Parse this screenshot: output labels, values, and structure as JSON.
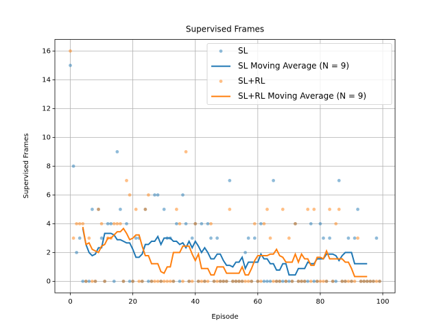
{
  "chart_data": {
    "type": "line",
    "title": "Supervised Frames",
    "x_label": "Episode",
    "y_label": "Supervised Frames",
    "x": [
      0,
      1,
      2,
      3,
      4,
      5,
      6,
      7,
      8,
      9,
      10,
      11,
      12,
      13,
      14,
      15,
      16,
      17,
      18,
      19,
      20,
      21,
      22,
      23,
      24,
      25,
      26,
      27,
      28,
      29,
      30,
      31,
      32,
      33,
      34,
      35,
      36,
      37,
      38,
      39,
      40,
      41,
      42,
      43,
      44,
      45,
      46,
      47,
      48,
      49,
      50,
      51,
      52,
      53,
      54,
      55,
      56,
      57,
      58,
      59,
      60,
      61,
      62,
      63,
      64,
      65,
      66,
      67,
      68,
      69,
      70,
      71,
      72,
      73,
      74,
      75,
      76,
      77,
      78,
      79,
      80,
      81,
      82,
      83,
      84,
      85,
      86,
      87,
      88,
      89,
      90,
      91,
      92,
      93,
      94,
      95,
      96,
      97,
      98,
      99
    ],
    "series": [
      {
        "name": "SL",
        "color": "#1f77b4",
        "mode": "markers",
        "values": [
          15,
          8,
          2,
          3,
          0,
          0,
          0,
          5,
          0,
          5,
          3,
          0,
          4,
          4,
          0,
          9,
          5,
          0,
          4,
          0,
          0,
          3,
          3,
          0,
          5,
          0,
          0,
          6,
          6,
          0,
          5,
          3,
          3,
          0,
          4,
          0,
          6,
          4,
          0,
          3,
          4,
          0,
          4,
          0,
          4,
          3,
          0,
          3,
          0,
          0,
          0,
          7,
          0,
          0,
          0,
          0,
          2,
          3,
          0,
          3,
          0,
          4,
          0,
          0,
          0,
          7,
          0,
          0,
          0,
          0,
          0,
          0,
          4,
          0,
          0,
          0,
          0,
          4,
          0,
          0,
          4,
          3,
          0,
          3,
          0,
          0,
          7,
          0,
          0,
          3,
          0,
          3,
          5,
          0,
          0,
          0,
          0,
          0,
          3,
          0
        ]
      },
      {
        "name": "SL Moving Average (N = 9)",
        "color": "#1f77b4",
        "mode": "line",
        "values": [
          null,
          null,
          null,
          null,
          3.67,
          2.56,
          2,
          1.78,
          1.89,
          2.33,
          2.33,
          3.33,
          3.33,
          3.33,
          3.22,
          2.89,
          2.89,
          2.78,
          2.67,
          2.67,
          2.22,
          1.67,
          1.67,
          1.89,
          2.56,
          2.56,
          2.78,
          2.78,
          3.11,
          2.56,
          3,
          3,
          3,
          2.78,
          2.78,
          2.56,
          2.67,
          2.33,
          2.78,
          2.33,
          2.78,
          2.44,
          2,
          2.33,
          2,
          1.56,
          1.56,
          1.89,
          1.89,
          1.44,
          1.11,
          1.11,
          1,
          1.33,
          1.33,
          1.67,
          0.89,
          1.33,
          1.33,
          1.33,
          1.33,
          1.89,
          1.56,
          1.56,
          1.22,
          1.22,
          0.78,
          0.78,
          1.22,
          1.22,
          0.44,
          0.44,
          0.44,
          0.89,
          0.89,
          0.89,
          1.33,
          1.22,
          1.22,
          1.56,
          1.56,
          1.56,
          1.89,
          1.89,
          1.89,
          1.78,
          1.44,
          1.78,
          2,
          2,
          2,
          1.22,
          1.22,
          1.22,
          1.22,
          1.22,
          null,
          null,
          null,
          null
        ]
      },
      {
        "name": "SL+RL",
        "color": "#ff7f0e",
        "mode": "markers",
        "values": [
          16,
          3,
          4,
          4,
          4,
          0,
          3,
          0,
          0,
          5,
          4,
          0,
          3,
          3,
          4,
          4,
          4,
          0,
          7,
          6,
          0,
          5,
          0,
          0,
          5,
          6,
          0,
          0,
          0,
          0,
          0,
          0,
          0,
          0,
          5,
          4,
          0,
          9,
          0,
          0,
          4,
          0,
          0,
          0,
          0,
          4,
          0,
          0,
          0,
          0,
          0,
          5,
          0,
          0,
          0,
          0,
          0,
          0,
          0,
          4,
          0,
          0,
          4,
          5,
          3,
          0,
          0,
          0,
          5,
          0,
          3,
          0,
          4,
          0,
          0,
          0,
          5,
          0,
          5,
          0,
          0,
          0,
          0,
          5,
          0,
          4,
          5,
          0,
          0,
          0,
          0,
          0,
          3,
          0,
          0,
          0,
          0,
          0,
          0,
          0
        ]
      },
      {
        "name": "SL+RL Moving Average (N = 9)",
        "color": "#ff7f0e",
        "mode": "line",
        "values": [
          null,
          null,
          null,
          null,
          3.78,
          2.56,
          2.67,
          2.22,
          2.11,
          2,
          2.44,
          2.56,
          3,
          3,
          3.22,
          3.44,
          3.44,
          3.67,
          3.33,
          2.89,
          3,
          3.22,
          3.22,
          2.44,
          1.78,
          1.78,
          1.22,
          1.22,
          1.22,
          0.67,
          0.56,
          1,
          1,
          2,
          2,
          2,
          2.44,
          2.44,
          2.44,
          1.89,
          1.44,
          1.89,
          0.89,
          0.89,
          0.89,
          0.44,
          0.44,
          1,
          1,
          1,
          0.56,
          0.56,
          0.56,
          0.56,
          0.56,
          1,
          0.44,
          0.44,
          0.89,
          1.44,
          1.78,
          1.78,
          1.78,
          1.78,
          1.89,
          1.89,
          2.22,
          1.78,
          1.67,
          1.33,
          1.33,
          1.33,
          1.89,
          1.33,
          1.89,
          1.56,
          1.56,
          1.11,
          1.11,
          1.67,
          1.67,
          1.56,
          2.11,
          1.56,
          1.56,
          1.56,
          1.56,
          1.56,
          1.33,
          1.33,
          0.89,
          0.33,
          0.33,
          0.33,
          0.33,
          0.33,
          null,
          null,
          null,
          null
        ]
      }
    ],
    "xlim": [
      -4.95,
      103.95
    ],
    "xticks": [
      0,
      20,
      40,
      60,
      80,
      100
    ],
    "ylim": [
      -0.8,
      16.8
    ],
    "yticks": [
      0,
      2,
      4,
      6,
      8,
      10,
      12,
      14,
      16
    ],
    "grid": true,
    "legend": "upper right"
  }
}
